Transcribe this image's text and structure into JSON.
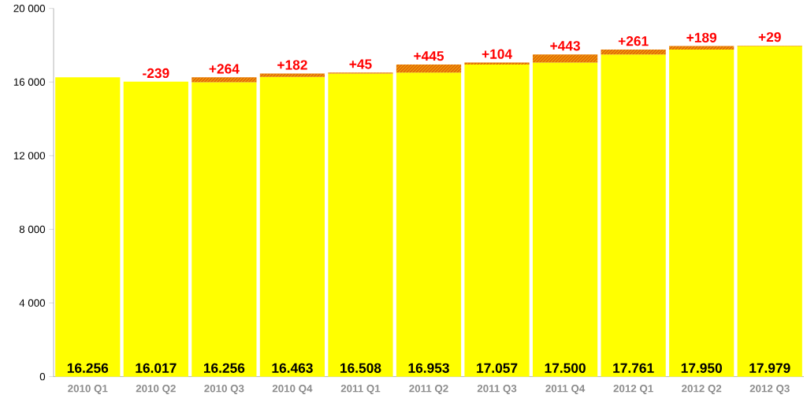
{
  "chart_data": {
    "type": "bar",
    "stacked": true,
    "categories": [
      "2010 Q1",
      "2010 Q2",
      "2010 Q3",
      "2010 Q4",
      "2011 Q1",
      "2011 Q2",
      "2011 Q3",
      "2011 Q4",
      "2012 Q1",
      "2012 Q2",
      "2012 Q3"
    ],
    "series": [
      {
        "color": "#ffff00",
        "values": [
          16256,
          16017,
          15992,
          16281,
          16463,
          16508,
          16953,
          17057,
          17500,
          17761,
          17950
        ]
      },
      {
        "color": "#e46c0a",
        "values": [
          null,
          null,
          264,
          182,
          45,
          445,
          104,
          443,
          261,
          189,
          29
        ],
        "value_labels": [
          null,
          "-239",
          "+264",
          "+182",
          "+45",
          "+445",
          "+104",
          "+443",
          "+261",
          "+189",
          "+29"
        ]
      }
    ],
    "totals": [
      "16.256",
      "16.017",
      "16.256",
      "16.463",
      "16.508",
      "16.953",
      "17.057",
      "17.500",
      "17.761",
      "17.950",
      "17.979"
    ],
    "ylim": [
      0,
      20000
    ],
    "yticks": [
      0,
      {
        "value": 4000,
        "label": "4 000"
      },
      {
        "value": 8000,
        "label": "8 000"
      },
      {
        "value": 12000,
        "label": "12 000"
      },
      {
        "value": 16000,
        "label": "16 000"
      },
      {
        "value": 20000,
        "label": "20 000"
      }
    ],
    "grid": false
  }
}
